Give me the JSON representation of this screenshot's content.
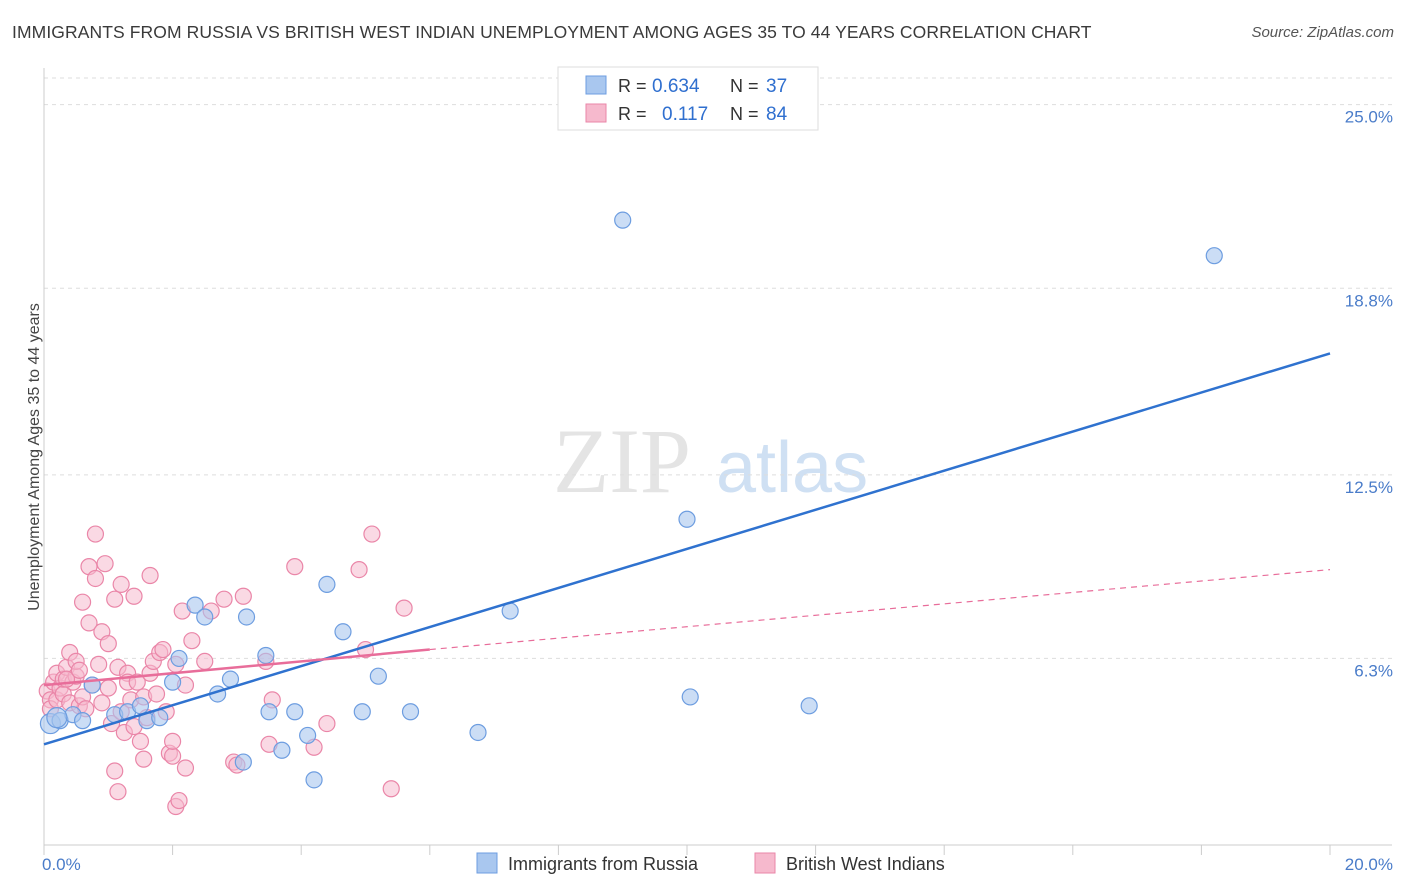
{
  "title": "IMMIGRANTS FROM RUSSIA VS BRITISH WEST INDIAN UNEMPLOYMENT AMONG AGES 35 TO 44 YEARS CORRELATION CHART",
  "source": "Source: ZipAtlas.com",
  "watermark": {
    "zip": "ZIP",
    "atlas": "atlas"
  },
  "legend": {
    "russia": {
      "r_label": "R =",
      "r_value": "0.634",
      "n_label": "N =",
      "n_value": "37"
    },
    "bwi": {
      "r_label": "R =",
      "r_value": "0.117",
      "n_label": "N =",
      "n_value": "84"
    }
  },
  "colors": {
    "russia_fill": "#a9c7ef",
    "russia_stroke": "#6d9de0",
    "russia_line": "#2f72cf",
    "bwi_fill": "#f6b9cd",
    "bwi_stroke": "#ea86a8",
    "bwi_line": "#e86d9a",
    "grid": "#dddddd",
    "tick_text": "#4a7cc9"
  },
  "chart_data": {
    "type": "scatter",
    "title": "IMMIGRANTS FROM RUSSIA VS BRITISH WEST INDIAN UNEMPLOYMENT AMONG AGES 35 TO 44 YEARS CORRELATION CHART",
    "xlabel": "",
    "ylabel": "Unemployment Among Ages 35 to 44 years",
    "xlim": [
      0,
      20
    ],
    "ylim": [
      0,
      25.9
    ],
    "x_tick_labels": [
      "0.0%",
      "20.0%"
    ],
    "y_ticks": [
      6.3,
      12.5,
      18.8,
      25.0
    ],
    "y_tick_labels": [
      "6.3%",
      "12.5%",
      "18.8%",
      "25.0%"
    ],
    "legend_labels": [
      "Immigrants from Russia",
      "British West Indians"
    ],
    "series": [
      {
        "name": "Immigrants from Russia",
        "r": 0.634,
        "n": 37,
        "trend": {
          "x0": 0,
          "y0": 3.4,
          "x1": 20,
          "y1": 16.6
        },
        "points": [
          [
            0.1,
            4.1
          ],
          [
            0.25,
            4.2
          ],
          [
            0.45,
            4.4
          ],
          [
            0.6,
            4.2
          ],
          [
            0.75,
            5.4
          ],
          [
            1.1,
            4.4
          ],
          [
            1.3,
            4.5
          ],
          [
            1.5,
            4.7
          ],
          [
            1.6,
            4.2
          ],
          [
            1.8,
            4.3
          ],
          [
            2.0,
            5.5
          ],
          [
            2.1,
            6.3
          ],
          [
            2.35,
            8.1
          ],
          [
            2.5,
            7.7
          ],
          [
            2.7,
            5.1
          ],
          [
            2.9,
            5.6
          ],
          [
            3.1,
            2.8
          ],
          [
            3.15,
            7.7
          ],
          [
            3.45,
            6.4
          ],
          [
            3.5,
            4.5
          ],
          [
            3.7,
            3.2
          ],
          [
            3.9,
            4.5
          ],
          [
            4.1,
            3.7
          ],
          [
            4.2,
            2.2
          ],
          [
            4.4,
            8.8
          ],
          [
            4.65,
            7.2
          ],
          [
            4.95,
            4.5
          ],
          [
            5.2,
            5.7
          ],
          [
            5.7,
            4.5
          ],
          [
            6.75,
            3.8
          ],
          [
            7.25,
            7.9
          ],
          [
            9.0,
            21.1
          ],
          [
            10.0,
            11.0
          ],
          [
            10.05,
            5.0
          ],
          [
            11.9,
            4.7
          ],
          [
            18.2,
            19.9
          ],
          [
            0.2,
            4.3
          ]
        ]
      },
      {
        "name": "British West Indians",
        "r": 0.117,
        "n": 84,
        "trend": {
          "x0": 0,
          "y0": 5.4,
          "x1": 6.0,
          "y1": 6.6
        },
        "trend_dashed": {
          "x0": 6.0,
          "y0": 6.6,
          "x1": 20,
          "y1": 9.3
        },
        "points": [
          [
            0.05,
            5.2
          ],
          [
            0.1,
            4.9
          ],
          [
            0.1,
            4.6
          ],
          [
            0.15,
            5.5
          ],
          [
            0.2,
            5.8
          ],
          [
            0.2,
            4.9
          ],
          [
            0.25,
            5.3
          ],
          [
            0.3,
            5.1
          ],
          [
            0.3,
            5.6
          ],
          [
            0.35,
            6.0
          ],
          [
            0.4,
            4.8
          ],
          [
            0.4,
            6.5
          ],
          [
            0.45,
            5.5
          ],
          [
            0.5,
            5.7
          ],
          [
            0.5,
            6.2
          ],
          [
            0.55,
            4.7
          ],
          [
            0.6,
            5.0
          ],
          [
            0.6,
            8.2
          ],
          [
            0.65,
            4.6
          ],
          [
            0.7,
            7.5
          ],
          [
            0.7,
            9.4
          ],
          [
            0.75,
            5.4
          ],
          [
            0.8,
            10.5
          ],
          [
            0.8,
            9.0
          ],
          [
            0.85,
            6.1
          ],
          [
            0.9,
            7.2
          ],
          [
            0.9,
            4.8
          ],
          [
            0.95,
            9.5
          ],
          [
            1.0,
            6.8
          ],
          [
            1.0,
            5.3
          ],
          [
            1.05,
            4.1
          ],
          [
            1.1,
            2.5
          ],
          [
            1.1,
            8.3
          ],
          [
            1.15,
            6.0
          ],
          [
            1.15,
            1.8
          ],
          [
            1.2,
            4.5
          ],
          [
            1.2,
            8.8
          ],
          [
            1.25,
            3.8
          ],
          [
            1.3,
            5.8
          ],
          [
            1.3,
            5.5
          ],
          [
            1.35,
            4.9
          ],
          [
            1.4,
            8.4
          ],
          [
            1.45,
            5.5
          ],
          [
            1.5,
            3.5
          ],
          [
            1.55,
            2.9
          ],
          [
            1.55,
            5.0
          ],
          [
            1.6,
            4.3
          ],
          [
            1.65,
            5.8
          ],
          [
            1.65,
            9.1
          ],
          [
            1.7,
            6.2
          ],
          [
            1.75,
            5.1
          ],
          [
            1.8,
            6.5
          ],
          [
            1.85,
            6.6
          ],
          [
            1.9,
            4.5
          ],
          [
            1.95,
            3.1
          ],
          [
            2.0,
            3.0
          ],
          [
            2.0,
            3.5
          ],
          [
            2.05,
            6.1
          ],
          [
            2.05,
            1.3
          ],
          [
            2.1,
            1.5
          ],
          [
            2.15,
            7.9
          ],
          [
            2.2,
            5.4
          ],
          [
            2.2,
            2.6
          ],
          [
            2.3,
            6.9
          ],
          [
            2.5,
            6.2
          ],
          [
            2.6,
            7.9
          ],
          [
            2.8,
            8.3
          ],
          [
            2.95,
            2.8
          ],
          [
            3.0,
            2.7
          ],
          [
            3.1,
            8.4
          ],
          [
            3.45,
            6.2
          ],
          [
            3.5,
            3.4
          ],
          [
            3.55,
            4.9
          ],
          [
            3.9,
            9.4
          ],
          [
            4.2,
            3.3
          ],
          [
            4.4,
            4.1
          ],
          [
            4.9,
            9.3
          ],
          [
            5.0,
            6.6
          ],
          [
            5.1,
            10.5
          ],
          [
            5.4,
            1.9
          ],
          [
            5.6,
            8.0
          ],
          [
            0.35,
            5.6
          ],
          [
            0.55,
            5.9
          ],
          [
            1.4,
            4.0
          ]
        ]
      }
    ]
  }
}
